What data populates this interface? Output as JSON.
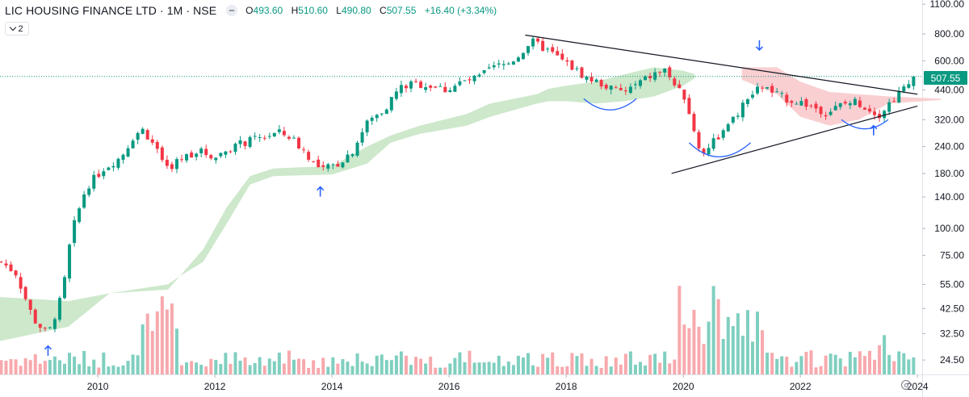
{
  "header": {
    "symbol": "LIC HOUSING FINANCE LTD · 1M · NSE",
    "ohlc": [
      {
        "label": "O",
        "value": "493.60"
      },
      {
        "label": "H",
        "value": "510.60"
      },
      {
        "label": "L",
        "value": "490.80"
      },
      {
        "label": "C",
        "value": "507.55"
      }
    ],
    "change": "+16.40 (+3.34%)",
    "indicator_count": "2"
  },
  "colors": {
    "up": "#089981",
    "down": "#f23645",
    "up_volume": "#7fcfbf",
    "down_volume": "#f7a9ad",
    "cloud_bull": "#cde8cb",
    "cloud_bear": "#f9cfd2",
    "trendline": "#131722",
    "arc": "#2962ff",
    "arrow": "#2962ff"
  },
  "chart_data": {
    "type": "candlestick",
    "title": "LIC HOUSING FINANCE LTD · 1M · NSE",
    "scale": "log",
    "interval": "1M",
    "ylim": [
      21,
      1150
    ],
    "last_price": 507.55,
    "last_price_label": "507.55",
    "y_ticks": [
      "1100.00",
      "800.00",
      "600.00",
      "440.00",
      "320.00",
      "240.00",
      "180.00",
      "140.00",
      "100.00",
      "75.00",
      "55.00",
      "42.50",
      "32.50",
      "24.50"
    ],
    "x_ticks": [
      "2010",
      "2012",
      "2014",
      "2016",
      "2018",
      "2020",
      "2022",
      "2024"
    ],
    "x_range": [
      2008.33,
      2024.08
    ],
    "price_path": [
      [
        2008.35,
        70
      ],
      [
        2008.6,
        62
      ],
      [
        2008.9,
        38
      ],
      [
        2009.15,
        32
      ],
      [
        2009.4,
        50
      ],
      [
        2009.55,
        95
      ],
      [
        2009.8,
        155
      ],
      [
        2010.1,
        190
      ],
      [
        2010.4,
        215
      ],
      [
        2010.6,
        265
      ],
      [
        2010.75,
        290
      ],
      [
        2010.95,
        250
      ],
      [
        2011.15,
        185
      ],
      [
        2011.4,
        210
      ],
      [
        2011.7,
        230
      ],
      [
        2012.0,
        215
      ],
      [
        2012.3,
        240
      ],
      [
        2012.6,
        255
      ],
      [
        2012.9,
        270
      ],
      [
        2013.1,
        278
      ],
      [
        2013.3,
        265
      ],
      [
        2013.55,
        225
      ],
      [
        2013.8,
        185
      ],
      [
        2014.1,
        200
      ],
      [
        2014.35,
        230
      ],
      [
        2014.6,
        310
      ],
      [
        2014.9,
        360
      ],
      [
        2015.15,
        450
      ],
      [
        2015.4,
        470
      ],
      [
        2015.7,
        460
      ],
      [
        2015.95,
        440
      ],
      [
        2016.2,
        475
      ],
      [
        2016.5,
        500
      ],
      [
        2016.75,
        560
      ],
      [
        2017.0,
        580
      ],
      [
        2017.2,
        640
      ],
      [
        2017.4,
        740
      ],
      [
        2017.65,
        680
      ],
      [
        2017.9,
        610
      ],
      [
        2018.1,
        560
      ],
      [
        2018.35,
        500
      ],
      [
        2018.6,
        470
      ],
      [
        2018.8,
        440
      ],
      [
        2019.0,
        430
      ],
      [
        2019.2,
        465
      ],
      [
        2019.5,
        520
      ],
      [
        2019.7,
        545
      ],
      [
        2019.9,
        440
      ],
      [
        2020.05,
        400
      ],
      [
        2020.15,
        300
      ],
      [
        2020.3,
        220
      ],
      [
        2020.5,
        255
      ],
      [
        2020.75,
        290
      ],
      [
        2020.95,
        350
      ],
      [
        2021.15,
        410
      ],
      [
        2021.35,
        460
      ],
      [
        2021.5,
        430
      ],
      [
        2021.75,
        400
      ],
      [
        2022.0,
        385
      ],
      [
        2022.2,
        370
      ],
      [
        2022.45,
        345
      ],
      [
        2022.7,
        375
      ],
      [
        2022.95,
        390
      ],
      [
        2023.15,
        360
      ],
      [
        2023.35,
        340
      ],
      [
        2023.55,
        390
      ],
      [
        2023.8,
        455
      ],
      [
        2024.0,
        507.55
      ]
    ],
    "ichimoku_cloud": {
      "lower": [
        [
          2008.33,
          30
        ],
        [
          2009.5,
          35
        ],
        [
          2010.2,
          50
        ],
        [
          2011.2,
          52
        ],
        [
          2011.4,
          60
        ],
        [
          2011.8,
          70
        ],
        [
          2012.2,
          105
        ],
        [
          2012.6,
          160
        ],
        [
          2013.0,
          175
        ],
        [
          2014.0,
          178
        ],
        [
          2014.6,
          200
        ],
        [
          2015.0,
          250
        ],
        [
          2015.5,
          275
        ],
        [
          2016.3,
          300
        ],
        [
          2016.7,
          330
        ],
        [
          2017.5,
          380
        ],
        [
          2017.7,
          390
        ],
        [
          2018.0,
          390
        ],
        [
          2018.5,
          380
        ],
        [
          2019.0,
          390
        ],
        [
          2019.5,
          410
        ],
        [
          2020.0,
          460
        ],
        [
          2020.2,
          500
        ],
        [
          2021.0,
          490
        ],
        [
          2021.6,
          420
        ],
        [
          2022.0,
          330
        ],
        [
          2022.5,
          300
        ],
        [
          2023.0,
          320
        ],
        [
          2023.5,
          380
        ],
        [
          2024.4,
          395
        ]
      ],
      "upper": [
        [
          2008.33,
          48
        ],
        [
          2009.5,
          46
        ],
        [
          2010.2,
          50
        ],
        [
          2011.2,
          55
        ],
        [
          2011.4,
          60
        ],
        [
          2011.8,
          80
        ],
        [
          2012.2,
          125
        ],
        [
          2012.6,
          175
        ],
        [
          2013.0,
          190
        ],
        [
          2014.0,
          195
        ],
        [
          2014.6,
          240
        ],
        [
          2015.0,
          270
        ],
        [
          2015.5,
          300
        ],
        [
          2016.3,
          340
        ],
        [
          2016.7,
          380
        ],
        [
          2017.5,
          420
        ],
        [
          2017.7,
          445
        ],
        [
          2018.0,
          460
        ],
        [
          2018.5,
          480
        ],
        [
          2019.0,
          520
        ],
        [
          2019.5,
          560
        ],
        [
          2020.0,
          540
        ],
        [
          2020.2,
          520
        ],
        [
          2021.0,
          560
        ],
        [
          2021.6,
          560
        ],
        [
          2022.0,
          480
        ],
        [
          2022.5,
          430
        ],
        [
          2023.0,
          420
        ],
        [
          2023.5,
          410
        ],
        [
          2024.4,
          400
        ]
      ],
      "bear_from": 2020.6
    },
    "trendlines": [
      {
        "name": "descending-resistance",
        "from": [
          2017.3,
          790
        ],
        "to": [
          2024.0,
          420
        ]
      },
      {
        "name": "ascending-support",
        "from": [
          2019.8,
          180
        ],
        "to": [
          2024.0,
          370
        ]
      }
    ],
    "arcs": [
      {
        "from": [
          2018.3,
          400
        ],
        "to": [
          2019.2,
          400
        ],
        "bottom": [
          2018.75,
          355
        ]
      },
      {
        "from": [
          2020.1,
          250
        ],
        "to": [
          2021.15,
          250
        ],
        "bottom": [
          2020.6,
          215
        ]
      },
      {
        "from": [
          2022.7,
          320
        ],
        "to": [
          2023.5,
          320
        ],
        "bottom": [
          2023.1,
          290
        ]
      }
    ],
    "arrows": [
      {
        "x": 2009.15,
        "y": 27,
        "dir": "up"
      },
      {
        "x": 2013.8,
        "y": 148,
        "dir": "up"
      },
      {
        "x": 2021.3,
        "y": 710,
        "dir": "down"
      },
      {
        "x": 2023.25,
        "y": 285,
        "dir": "up"
      }
    ]
  }
}
